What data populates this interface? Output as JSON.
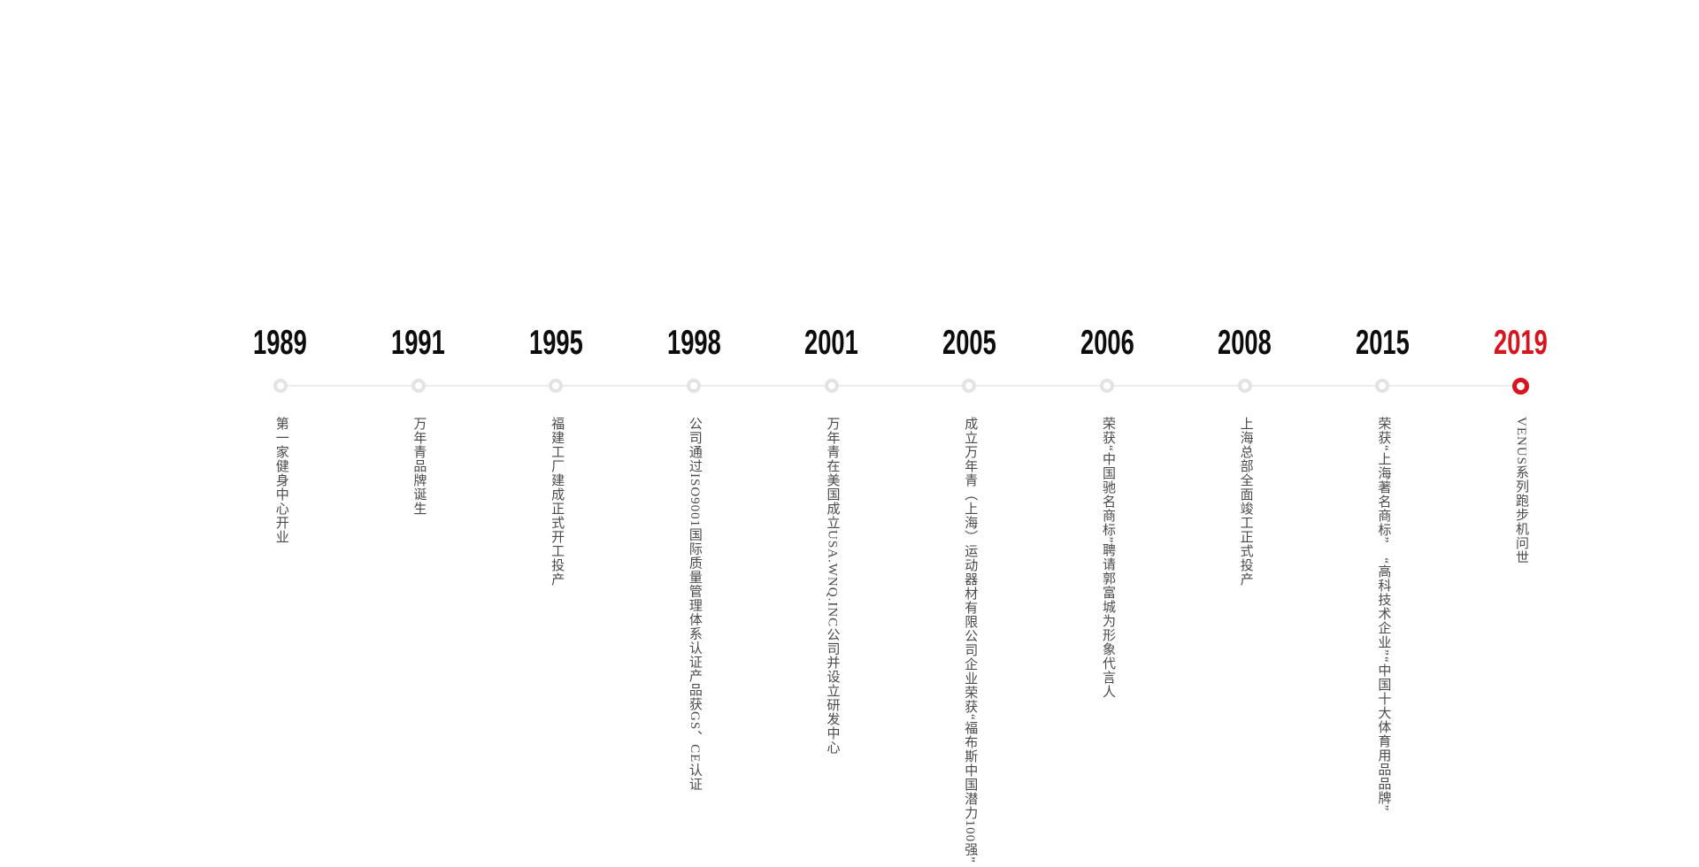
{
  "page": {
    "background_color": "#ffffff"
  },
  "timeline": {
    "line_color": "#ededed",
    "ring_color": "#e3e3e3",
    "accent_color": "#d8151e",
    "year_color": "#0d0d0d",
    "desc_color": "#4a4a4a",
    "events": [
      {
        "year": "1989",
        "highlight": false,
        "lines": [
          "第一家健身中心开业"
        ]
      },
      {
        "year": "1991",
        "highlight": false,
        "lines": [
          "万年青品牌诞生"
        ]
      },
      {
        "year": "1995",
        "highlight": false,
        "lines": [
          "福建工厂建成正式开工投产"
        ]
      },
      {
        "year": "1998",
        "highlight": false,
        "lines": [
          "公司通过ISO9001国际质量管理体系认证",
          "产品获GS、CE认证"
        ]
      },
      {
        "year": "2001",
        "highlight": false,
        "lines": [
          "万年青在美国成立USA.WNQ.INC公司",
          "并设立研发中心"
        ]
      },
      {
        "year": "2005",
        "highlight": false,
        "lines": [
          "成立万年青（上海）运动器材有限公司",
          "企业荣获“福布斯中国潜力100强”"
        ]
      },
      {
        "year": "2006",
        "highlight": false,
        "lines": [
          "荣获“中国驰名商标”",
          "聘请郭富城为形象代言人"
        ]
      },
      {
        "year": "2008",
        "highlight": false,
        "lines": [
          "上海总部全面竣工正式投产"
        ]
      },
      {
        "year": "2015",
        "highlight": false,
        "lines": [
          "荣获“上海著名商标”　“高科技术企业”",
          "“中国十大体育用品品牌”"
        ]
      },
      {
        "year": "2019",
        "highlight": true,
        "lines": [
          "VENUS系列跑步机问世"
        ]
      }
    ]
  }
}
